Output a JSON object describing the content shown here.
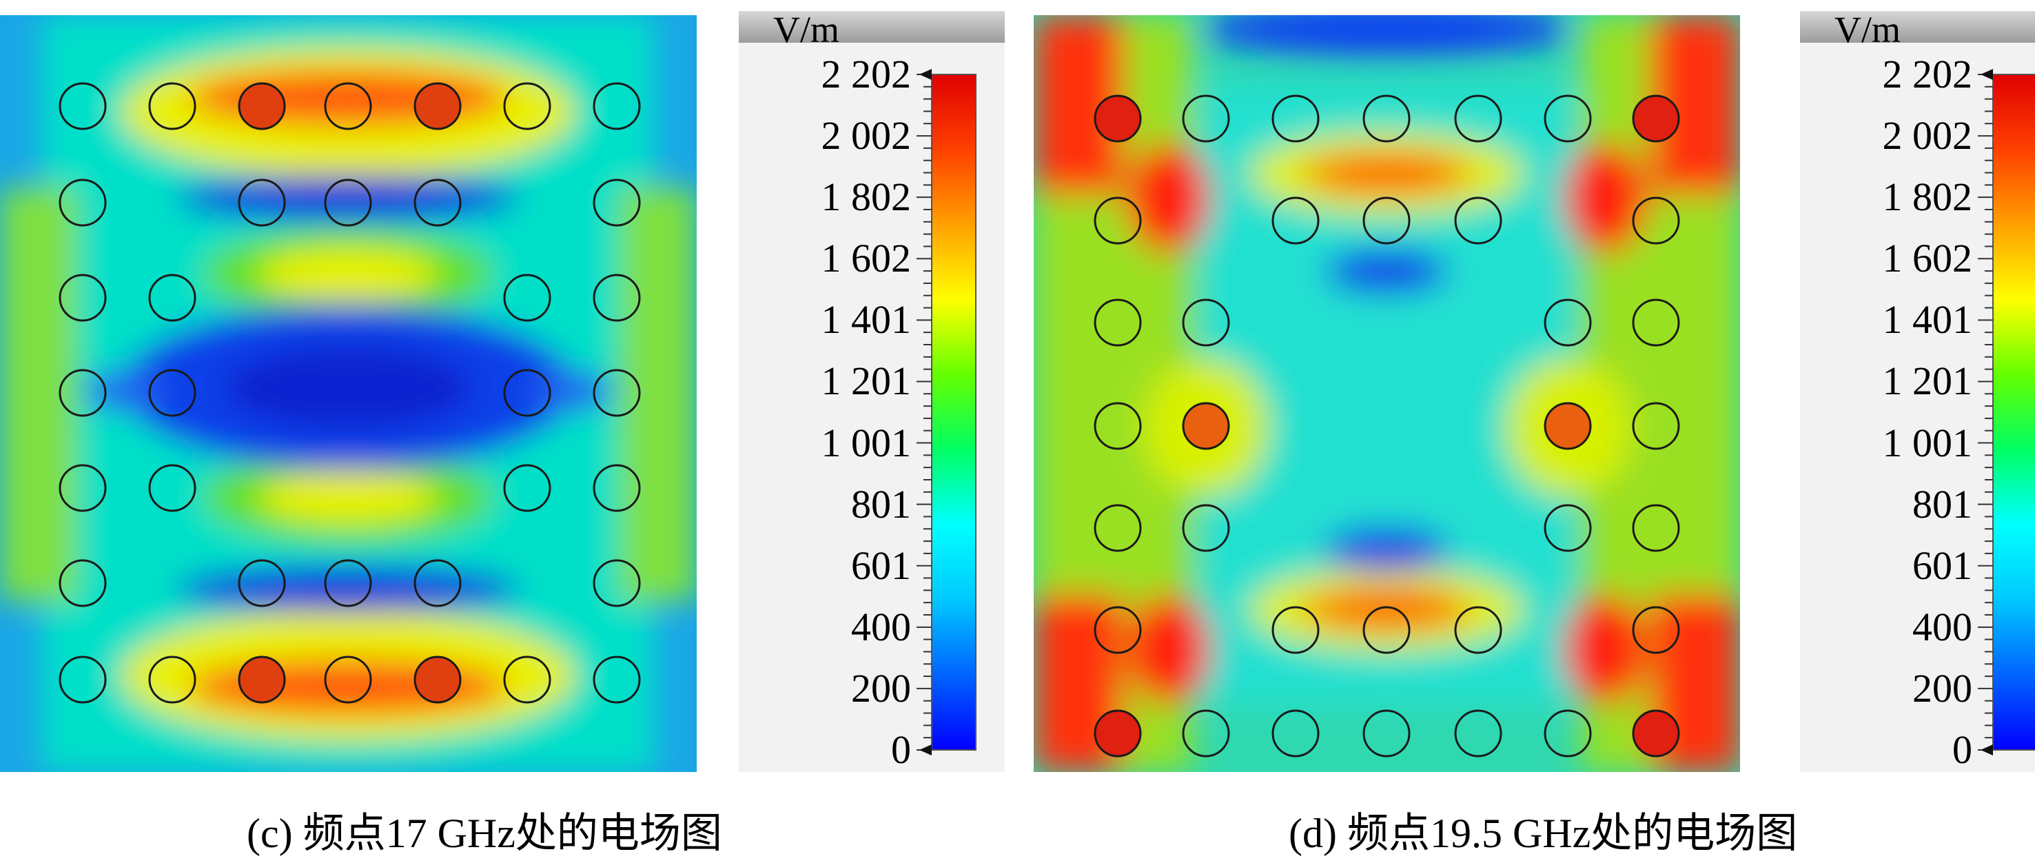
{
  "panels": [
    {
      "id": "c",
      "caption": "(c) 频点17 GHz处的电场图",
      "unit": "V/m",
      "scale_labels": [
        "2 202",
        "2 002",
        "1 802",
        "1 602",
        "1 401",
        "1 201",
        "1 001",
        "801",
        "601",
        "400",
        "200",
        "0"
      ],
      "scale_max": 2202,
      "scale_min": 0
    },
    {
      "id": "d",
      "caption": "(d) 频点19.5 GHz处的电场图",
      "unit": "V/m",
      "scale_labels": [
        "2 202",
        "2 002",
        "1 802",
        "1 602",
        "1 401",
        "1 201",
        "1 001",
        "801",
        "601",
        "400",
        "200",
        "0"
      ],
      "scale_max": 2202,
      "scale_min": 0
    }
  ],
  "colormap": [
    "#0000ff",
    "#0064ff",
    "#00c8ff",
    "#00ffff",
    "#00ff64",
    "#64ff00",
    "#ffff00",
    "#ffa000",
    "#ff4000",
    "#e00000"
  ]
}
